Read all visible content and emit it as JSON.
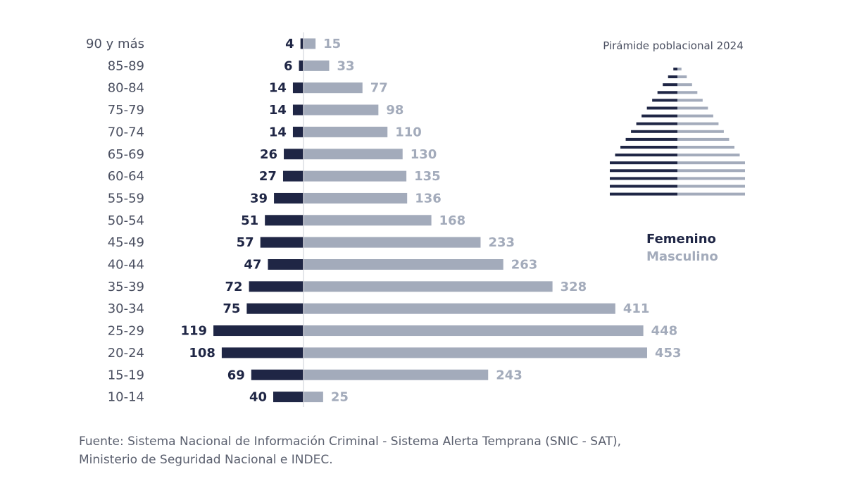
{
  "chart_data": {
    "type": "bar",
    "orientation": "horizontal",
    "layout": "population-pyramid",
    "categories": [
      "90 y más",
      "85-89",
      "80-84",
      "75-79",
      "70-74",
      "65-69",
      "60-64",
      "55-59",
      "50-54",
      "45-49",
      "40-44",
      "35-39",
      "30-34",
      "25-29",
      "20-24",
      "15-19",
      "10-14"
    ],
    "series": [
      {
        "name": "Femenino",
        "side": "left",
        "color": "#1f2645",
        "values": [
          4,
          6,
          14,
          14,
          14,
          26,
          27,
          39,
          51,
          57,
          47,
          72,
          75,
          119,
          108,
          69,
          40
        ]
      },
      {
        "name": "Masculino",
        "side": "right",
        "color": "#a3abbb",
        "values": [
          15,
          33,
          77,
          98,
          110,
          130,
          135,
          136,
          168,
          233,
          263,
          328,
          411,
          448,
          453,
          243,
          25
        ]
      }
    ],
    "legend": {
      "position": "right",
      "items": [
        "Femenino",
        "Masculino"
      ]
    },
    "inset": {
      "title": "Pirámide poblacional 2024",
      "type": "population-pyramid",
      "rows": 17
    },
    "grid": false
  },
  "source": {
    "line1": "Fuente: Sistema Nacional de Información Criminal - Sistema Alerta Temprana (SNIC - SAT),",
    "line2": "Ministerio de Seguridad Nacional e INDEC."
  }
}
